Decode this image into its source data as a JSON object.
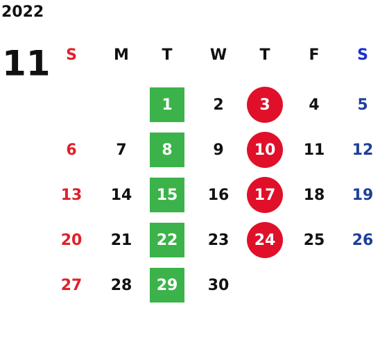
{
  "year": "2022",
  "month": "11",
  "weekdays": [
    "S",
    "M",
    "T",
    "W",
    "T",
    "F",
    "S"
  ],
  "weeks": [
    [
      null,
      null,
      "1",
      "2",
      "3",
      "4",
      "5"
    ],
    [
      "6",
      "7",
      "8",
      "9",
      "10",
      "11",
      "12"
    ],
    [
      "13",
      "14",
      "15",
      "16",
      "17",
      "18",
      "19"
    ],
    [
      "20",
      "21",
      "22",
      "23",
      "24",
      "25",
      "26"
    ],
    [
      "27",
      "28",
      "29",
      "30",
      null,
      null,
      null
    ]
  ]
}
